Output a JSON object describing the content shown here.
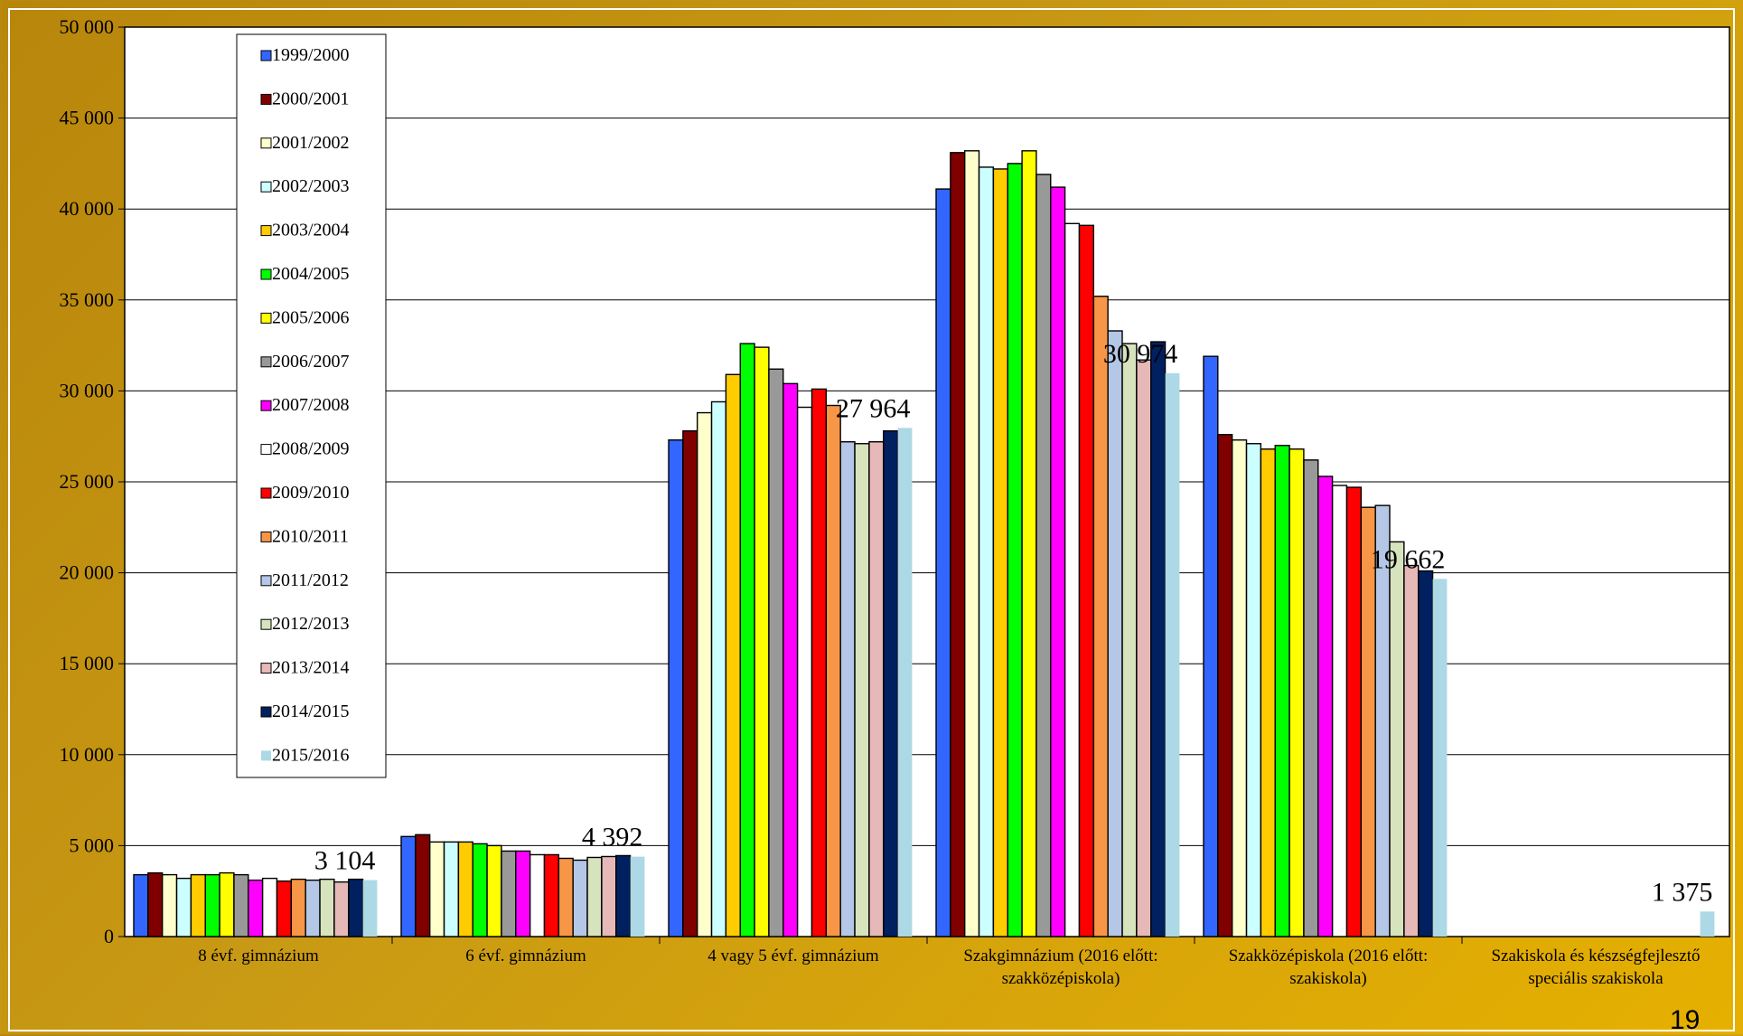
{
  "page_number": "19",
  "chart_data": {
    "type": "bar",
    "title": "",
    "xlabel": "",
    "ylabel": "",
    "ylim": [
      0,
      50000
    ],
    "yticks": [
      "0",
      "5 000",
      "10 000",
      "15 000",
      "20 000",
      "25 000",
      "30 000",
      "35 000",
      "40 000",
      "45 000",
      "50 000"
    ],
    "grid": true,
    "legend_position": "top-left",
    "categories": [
      [
        "8 évf. gimnázium"
      ],
      [
        "6 évf. gimnázium"
      ],
      [
        "4 vagy 5 évf. gimnázium"
      ],
      [
        "Szakgimnázium (2016 előtt:",
        "szakközépiskola)"
      ],
      [
        "Szakközépiskola (2016 előtt:",
        "szakiskola)"
      ],
      [
        "Szakiskola és készségfejlesztő",
        "speciális szakiskola"
      ]
    ],
    "series": [
      {
        "name": "1999/2000",
        "color": "#3366ff",
        "values": [
          3400,
          5500,
          27300,
          41100,
          31900,
          0
        ]
      },
      {
        "name": "2000/2001",
        "color": "#800000",
        "values": [
          3500,
          5600,
          27800,
          43100,
          27600,
          0
        ]
      },
      {
        "name": "2001/2002",
        "color": "#ffffcc",
        "values": [
          3400,
          5200,
          28800,
          43200,
          27300,
          0
        ]
      },
      {
        "name": "2002/2003",
        "color": "#ccffff",
        "values": [
          3200,
          5200,
          29400,
          42300,
          27100,
          0
        ]
      },
      {
        "name": "2003/2004",
        "color": "#ffcc00",
        "values": [
          3400,
          5200,
          30900,
          42200,
          26800,
          0
        ]
      },
      {
        "name": "2004/2005",
        "color": "#00ff00",
        "values": [
          3400,
          5100,
          32600,
          42500,
          27000,
          0
        ]
      },
      {
        "name": "2005/2006",
        "color": "#ffff00",
        "values": [
          3500,
          5000,
          32400,
          43200,
          26800,
          0
        ]
      },
      {
        "name": "2006/2007",
        "color": "#999999",
        "values": [
          3400,
          4700,
          31200,
          41900,
          26200,
          0
        ]
      },
      {
        "name": "2007/2008",
        "color": "#ff00ff",
        "values": [
          3100,
          4700,
          30400,
          41200,
          25300,
          0
        ]
      },
      {
        "name": "2008/2009",
        "color": "#ffffff",
        "values": [
          3200,
          4500,
          29100,
          39200,
          24800,
          0
        ]
      },
      {
        "name": "2009/2010",
        "color": "#ff0000",
        "values": [
          3050,
          4500,
          30100,
          39100,
          24700,
          0
        ]
      },
      {
        "name": "2010/2011",
        "color": "#f79646",
        "values": [
          3150,
          4300,
          29200,
          35200,
          23600,
          0
        ]
      },
      {
        "name": "2011/2012",
        "color": "#b4c7e7",
        "values": [
          3100,
          4200,
          27200,
          33300,
          23700,
          0
        ]
      },
      {
        "name": "2012/2013",
        "color": "#d6e3bc",
        "values": [
          3150,
          4350,
          27100,
          32600,
          21700,
          0
        ]
      },
      {
        "name": "2013/2014",
        "color": "#e6b9b8",
        "values": [
          3000,
          4400,
          27200,
          31700,
          20400,
          0
        ]
      },
      {
        "name": "2014/2015",
        "color": "#002060",
        "values": [
          3150,
          4450,
          27800,
          32700,
          20100,
          0
        ]
      },
      {
        "name": "2015/2016",
        "color": "#add8e6",
        "values": [
          3104,
          4392,
          27964,
          30974,
          19662,
          1375
        ]
      }
    ],
    "annotations": [
      "3 104",
      "4 392",
      "27 964",
      "30 974",
      "19 662",
      "1 375"
    ]
  }
}
